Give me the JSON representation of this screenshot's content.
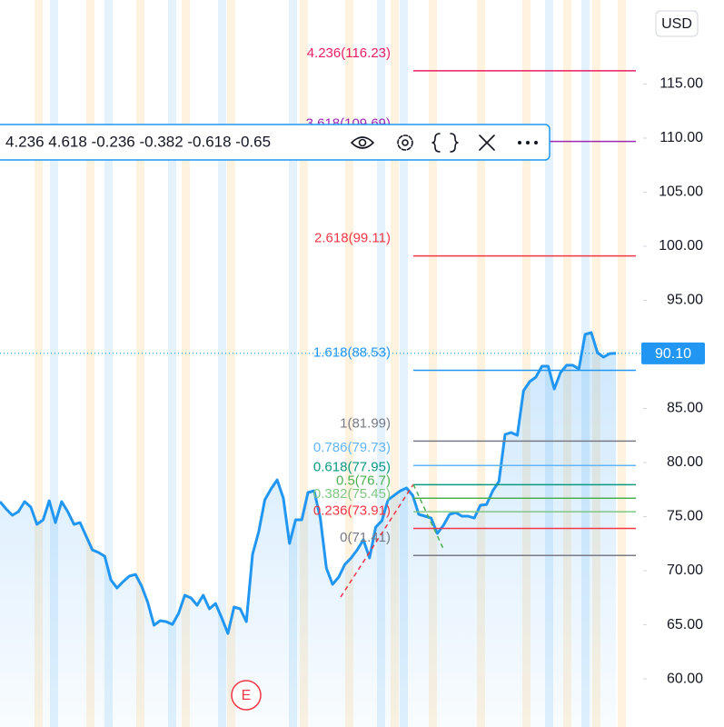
{
  "chart_data": {
    "type": "line",
    "currency": "USD",
    "color": "#2196f3",
    "ylim": [
      55.55,
      122.77
    ],
    "yticks": [
      {
        "value": 60,
        "label": "60.00"
      },
      {
        "value": 65,
        "label": "65.00"
      },
      {
        "value": 70,
        "label": "70.00"
      },
      {
        "value": 75,
        "label": "75.00"
      },
      {
        "value": 80,
        "label": "80.00"
      },
      {
        "value": 85,
        "label": "85.00"
      },
      {
        "value": 95,
        "label": "95.00"
      },
      {
        "value": 100,
        "label": "100.00"
      },
      {
        "value": 105,
        "label": "105.00"
      },
      {
        "value": 110,
        "label": "110.00"
      },
      {
        "value": 115,
        "label": "115.00"
      }
    ],
    "last_price": {
      "value": 90.1,
      "label": "90.10"
    },
    "values": [
      76.39,
      75.71,
      75.13,
      75.46,
      76.39,
      75.88,
      74.29,
      74.71,
      76.47,
      74.45,
      76.39,
      75.46,
      74.29,
      74.45,
      73.19,
      71.93,
      71.68,
      71.34,
      69.16,
      68.4,
      68.99,
      69.5,
      69.66,
      68.57,
      67.06,
      64.96,
      65.38,
      65.29,
      65.04,
      66.05,
      67.73,
      67.48,
      66.81,
      67.73,
      66.47,
      66.97,
      65.63,
      64.2,
      66.64,
      66.47,
      65.29,
      71.51,
      73.61,
      76.55,
      77.56,
      78.4,
      76.72,
      72.52,
      74.71,
      74.71,
      77.23,
      77.39,
      74.87,
      70.25,
      68.74,
      69.41,
      70.59,
      71.18,
      71.93,
      72.86,
      71.18,
      74.03,
      74.62,
      76.55,
      76.97,
      77.39,
      77.65,
      76.97,
      75.21,
      75.04,
      74.87,
      73.45,
      74.2,
      75.21,
      75.38,
      75.04,
      75.04,
      74.87,
      76.05,
      76.13,
      77.39,
      78.24,
      82.61,
      82.77,
      82.52,
      86.64,
      87.48,
      87.9,
      88.91,
      88.91,
      86.81,
      88.32,
      89.0,
      89.0,
      88.66,
      91.85,
      92.02,
      90.17,
      89.75,
      90.08,
      90.1
    ],
    "fib_levels": [
      {
        "label": "4.236(116.23)",
        "value": 116.23,
        "color": "#e91e63"
      },
      {
        "label": "3.618(109.69)",
        "value": 109.69,
        "color": "#9c27b0"
      },
      {
        "label": "2.618(99.11)",
        "value": 99.11,
        "color": "#f23645"
      },
      {
        "label": "1.618(88.53)",
        "value": 88.53,
        "color": "#2196f3"
      },
      {
        "label": "1(81.99)",
        "value": 81.99,
        "color": "#787b86"
      },
      {
        "label": "0.786(79.73)",
        "value": 79.73,
        "color": "#64b5f6"
      },
      {
        "label": "0.618(77.95)",
        "value": 77.95,
        "color": "#089981"
      },
      {
        "label": "0.5(76.7)",
        "value": 76.7,
        "color": "#4caf50"
      },
      {
        "label": "0.382(75.45)",
        "value": 75.45,
        "color": "#81c784"
      },
      {
        "label": "0.236(73.91)",
        "value": 73.91,
        "color": "#f23645"
      },
      {
        "label": "0(71.41)",
        "value": 71.41,
        "color": "#787b86"
      }
    ],
    "earnings_marker": "E",
    "toolbar_levels": "4.236 4.618 -0.236 -0.382 -0.618 -0.65"
  }
}
